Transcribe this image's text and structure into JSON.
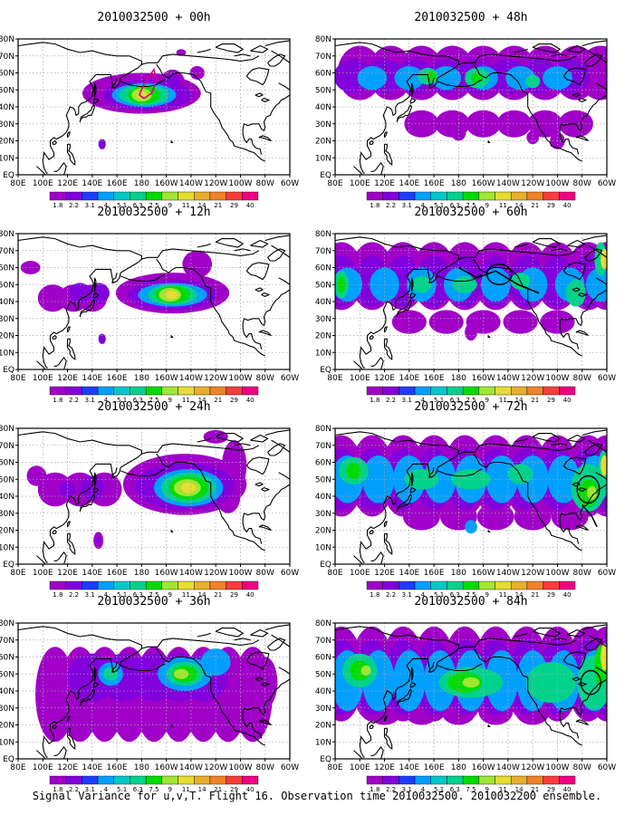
{
  "figure": {
    "caption": "Signal Variance for u,v,T. Flight 16. Observation time 2010032500. 2010032200 ensemble."
  },
  "map": {
    "lon_labels": [
      "80E",
      "100E",
      "120E",
      "140E",
      "160E",
      "180",
      "160W",
      "140W",
      "120W",
      "100W",
      "80W",
      "60W"
    ],
    "lat_labels": [
      "EQ",
      "10N",
      "20N",
      "30N",
      "40N",
      "50N",
      "60N",
      "70N",
      "80N"
    ],
    "colorbar": {
      "levels": [
        "1.8",
        "2.2",
        "3.1",
        "4",
        "5.1",
        "6.3",
        "7.5",
        "9",
        "11",
        "14",
        "21",
        "29",
        "40"
      ],
      "colors": [
        "#a000c8",
        "#8200dc",
        "#1e3cff",
        "#00a0ff",
        "#00c8c8",
        "#00d28c",
        "#00dc00",
        "#a0e632",
        "#e6dc32",
        "#e6af2d",
        "#f08228",
        "#fa3c3c",
        "#f00082"
      ]
    },
    "coast_color": "#000000",
    "grid_color": "#a8a8a8",
    "panels": [
      {
        "title": "2010032500 + 00h",
        "forecast_hour": 0
      },
      {
        "title": "2010032500 + 48h",
        "forecast_hour": 48
      },
      {
        "title": "2010032500 + 12h",
        "forecast_hour": 12
      },
      {
        "title": "2010032500 + 60h",
        "forecast_hour": 60
      },
      {
        "title": "2010032500 + 24h",
        "forecast_hour": 24
      },
      {
        "title": "2010032500 + 72h",
        "forecast_hour": 72
      },
      {
        "title": "2010032500 + 36h",
        "forecast_hour": 36
      },
      {
        "title": "2010032500 + 84h",
        "forecast_hour": 84
      }
    ]
  }
}
